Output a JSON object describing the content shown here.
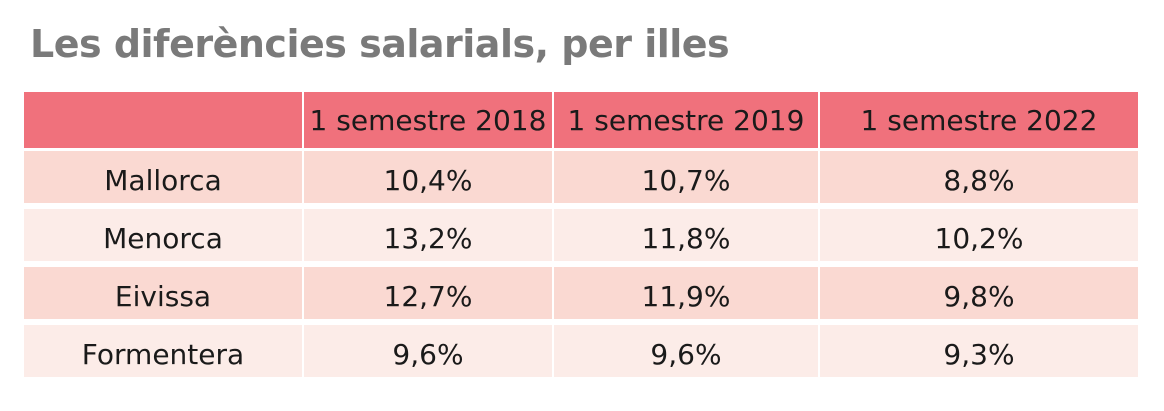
{
  "chart_data": {
    "type": "table",
    "title": "Les diferències salarials, per illes",
    "columns": [
      "",
      "1 semestre 2018",
      "1 semestre 2019",
      "1 semestre 2022"
    ],
    "rows": [
      {
        "label": "Mallorca",
        "values": [
          "10,4%",
          "10,7%",
          "8,8%"
        ]
      },
      {
        "label": "Menorca",
        "values": [
          "13,2%",
          "11,8%",
          "10,2%"
        ]
      },
      {
        "label": "Eivissa",
        "values": [
          "12,7%",
          "11,9%",
          "9,8%"
        ]
      },
      {
        "label": "Formentera",
        "values": [
          "9,6%",
          "9,6%",
          "9,3%"
        ]
      }
    ],
    "numeric_values": {
      "Mallorca": [
        10.4,
        10.7,
        8.8
      ],
      "Menorca": [
        13.2,
        11.8,
        10.2
      ],
      "Eivissa": [
        12.7,
        11.9,
        9.8
      ],
      "Formentera": [
        9.6,
        9.6,
        9.3
      ]
    },
    "colors": {
      "header": "#f0717c",
      "row_odd": "#fad9d2",
      "row_even": "#fcece8",
      "title": "#7a7a7a"
    }
  }
}
